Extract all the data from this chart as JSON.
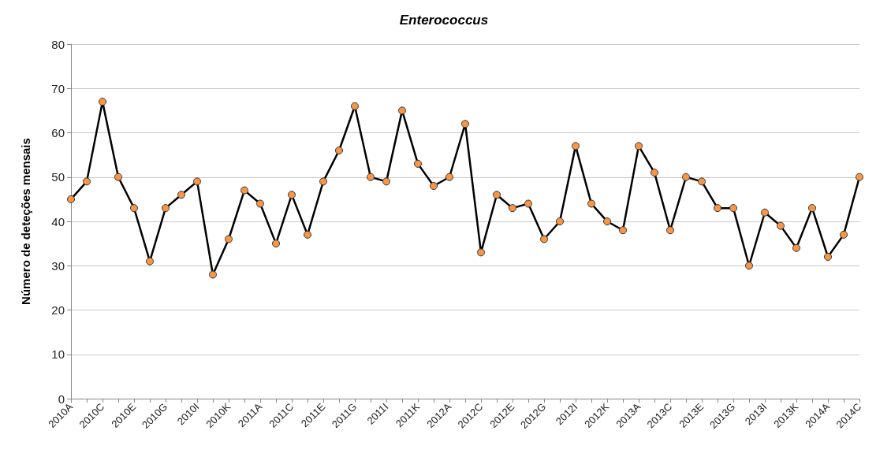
{
  "chart_data": {
    "type": "line",
    "title": "Enterococcus",
    "ylabel": "Número de deteções mensais",
    "categories": [
      "2010A",
      null,
      "2010C",
      null,
      "2010E",
      null,
      "2010G",
      null,
      "2010I",
      null,
      "2010K",
      null,
      "2011A",
      null,
      "2011C",
      null,
      "2011E",
      null,
      "2011G",
      null,
      "2011I",
      null,
      "2011K",
      null,
      "2012A",
      null,
      "2012C",
      null,
      "2012E",
      null,
      "2012G",
      null,
      "2012I",
      null,
      "2012K",
      null,
      "2013A",
      null,
      "2013C",
      null,
      "2013E",
      null,
      "2013G",
      null,
      "2013I",
      null,
      "2013K",
      null,
      "2014A",
      null,
      "2014C"
    ],
    "series": [
      {
        "color": "#f79646",
        "values": [
          45,
          49,
          67,
          50,
          43,
          31,
          43,
          46,
          49,
          28,
          36,
          47,
          44,
          35,
          46,
          37,
          49,
          56,
          66,
          50,
          49,
          65,
          53,
          48,
          50,
          62,
          33,
          46,
          43,
          44,
          36,
          40,
          57,
          44,
          40,
          38,
          57,
          51,
          38,
          50,
          49,
          43,
          43,
          30,
          42,
          39,
          34,
          43,
          32,
          37,
          50
        ]
      }
    ],
    "ylim": [
      0,
      80
    ],
    "yticks": [
      0,
      10,
      20,
      30,
      40,
      50,
      60,
      70,
      80
    ],
    "grid": "y",
    "marker": "circle",
    "line_style": "solid"
  }
}
